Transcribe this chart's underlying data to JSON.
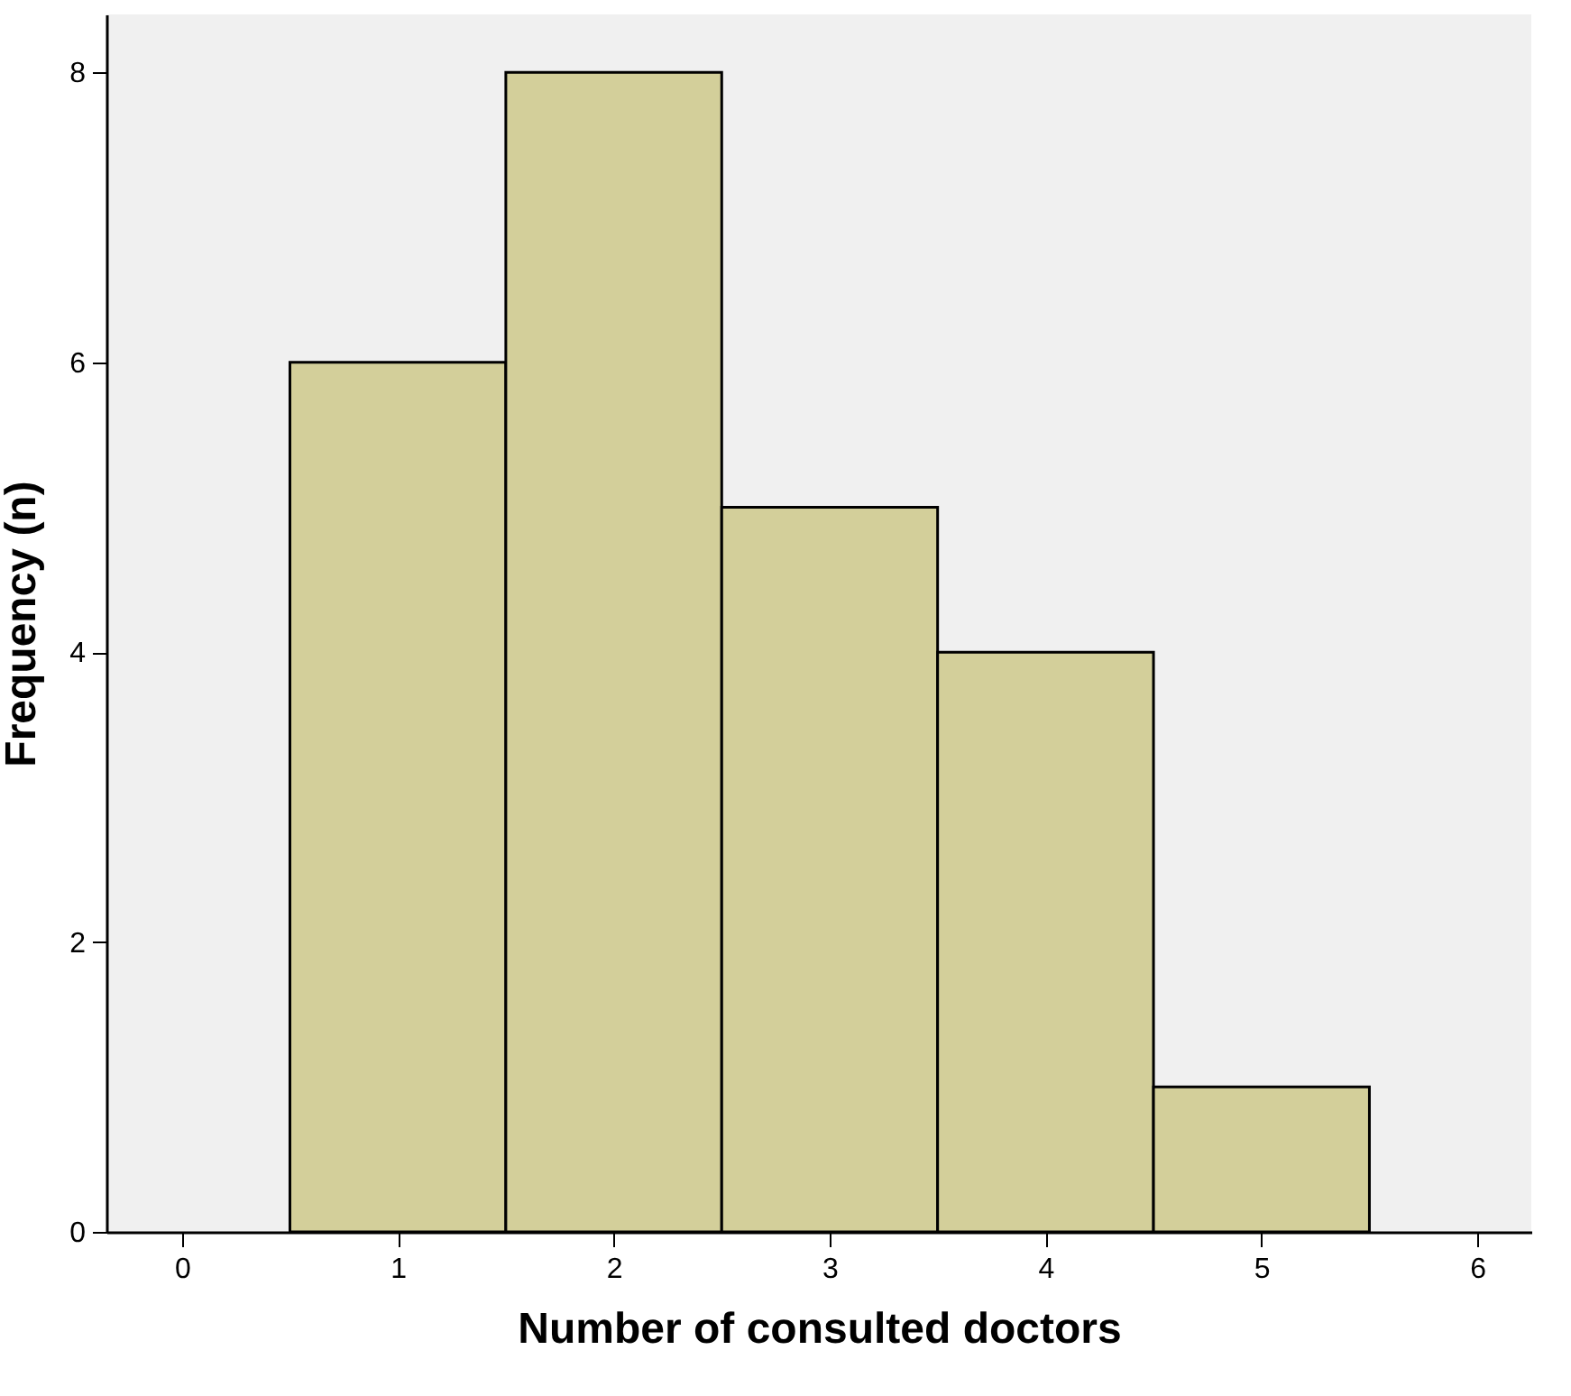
{
  "chart_data": {
    "type": "histogram",
    "xlabel": "Number of consulted doctors",
    "ylabel": "Frequency (n)",
    "bins": [
      0.5,
      1.5,
      2.5,
      3.5,
      4.5,
      5.5
    ],
    "values": [
      6,
      8,
      5,
      4,
      1
    ],
    "color": "#d3cf9a",
    "xlim": [
      -0.35,
      6.25
    ],
    "xticks": [
      0,
      1,
      2,
      3,
      4,
      5,
      6
    ],
    "ylim": [
      0,
      8.4
    ],
    "yticks": [
      0,
      2,
      4,
      6,
      8
    ],
    "grid": false
  }
}
